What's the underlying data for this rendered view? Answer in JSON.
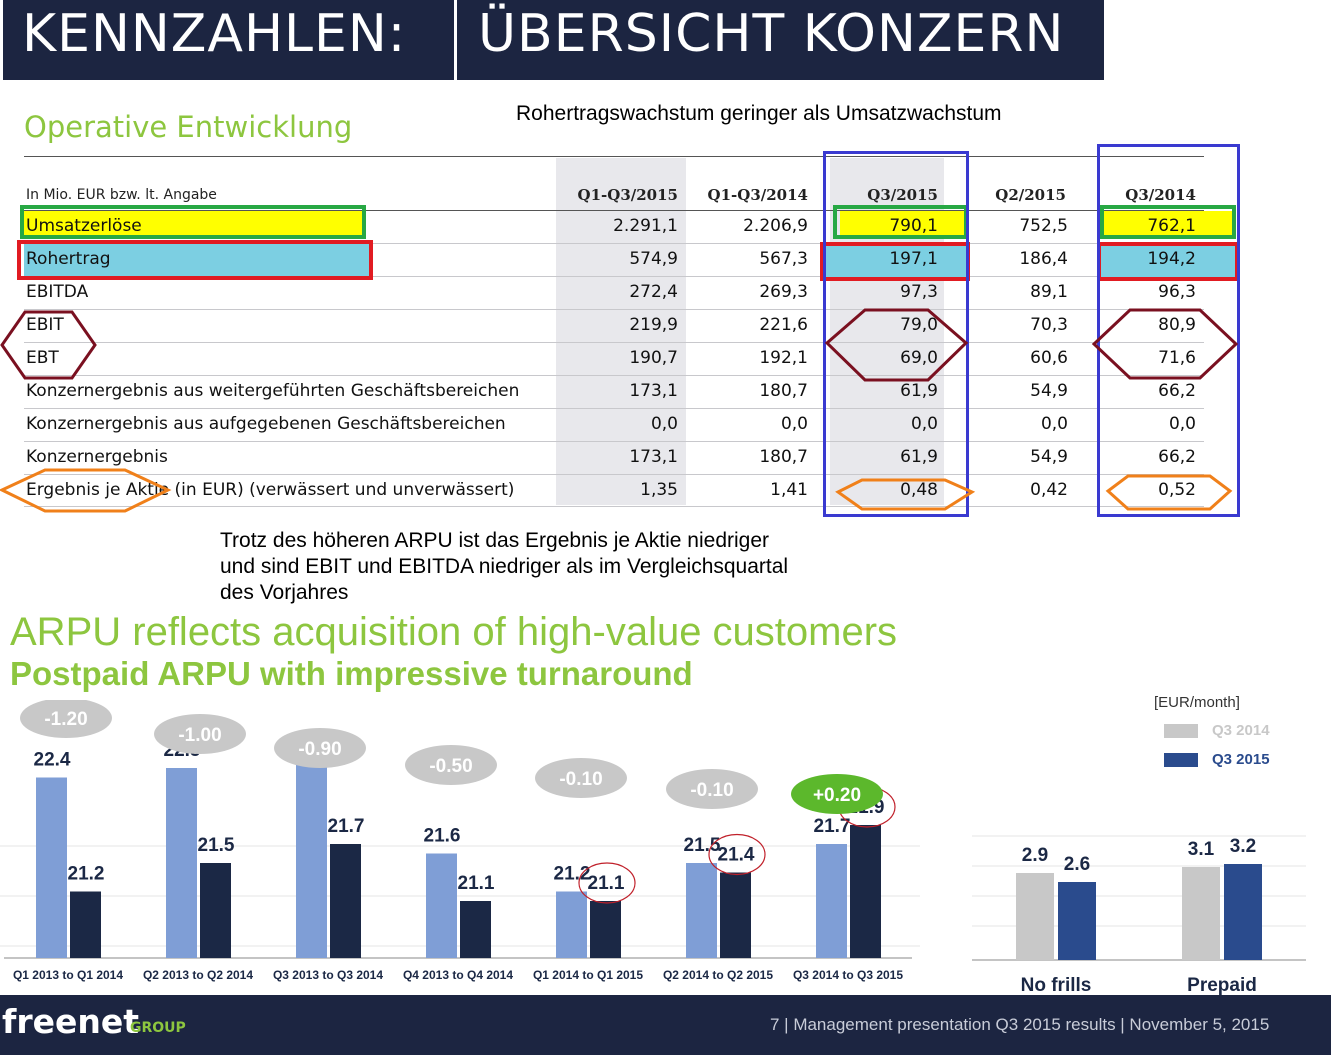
{
  "header": {
    "title_left": "KENNZAHLEN:",
    "title_right": "ÜBERSICHT KONZERN"
  },
  "section_title": "Operative Entwicklung",
  "note_top": "Rohertragswachstum geringer als Umsatzwachstum",
  "table": {
    "unit_label": "In Mio. EUR bzw. lt. Angabe",
    "columns": [
      "Q1-Q3/2015",
      "Q1-Q3/2014",
      "Q3/2015",
      "Q2/2015",
      "Q3/2014"
    ],
    "rows": [
      {
        "label": "Umsatzerlöse",
        "values": [
          "2.291,1",
          "2.206,9",
          "790,1",
          "752,5",
          "762,1"
        ]
      },
      {
        "label": "Rohertrag",
        "values": [
          "574,9",
          "567,3",
          "197,1",
          "186,4",
          "194,2"
        ]
      },
      {
        "label": "EBITDA",
        "values": [
          "272,4",
          "269,3",
          "97,3",
          "89,1",
          "96,3"
        ]
      },
      {
        "label": "EBIT",
        "values": [
          "219,9",
          "221,6",
          "79,0",
          "70,3",
          "80,9"
        ]
      },
      {
        "label": "EBT",
        "values": [
          "190,7",
          "192,1",
          "69,0",
          "60,6",
          "71,6"
        ]
      },
      {
        "label": "Konzernergebnis aus weitergeführten Geschäftsbereichen",
        "values": [
          "173,1",
          "180,7",
          "61,9",
          "54,9",
          "66,2"
        ]
      },
      {
        "label": "Konzernergebnis aus aufgegebenen Geschäftsbereichen",
        "values": [
          "0,0",
          "0,0",
          "0,0",
          "0,0",
          "0,0"
        ]
      },
      {
        "label": "Konzernergebnis",
        "values": [
          "173,1",
          "180,7",
          "61,9",
          "54,9",
          "66,2"
        ]
      },
      {
        "label": "Ergebnis je Aktie (in EUR) (verwässert und unverwässert)",
        "values": [
          "1,35",
          "1,41",
          "0,48",
          "0,42",
          "0,52"
        ]
      }
    ]
  },
  "note_bottom": [
    "Trotz des höheren ARPU ist das Ergebnis je Aktie niedriger",
    "und sind EBIT und EBITDA niedriger als im Vergleichsquartal",
    "des Vorjahres"
  ],
  "arpu": {
    "title": "ARPU reflects acquisition of high-value customers",
    "subtitle": "Postpaid ARPU with impressive turnaround"
  },
  "chart_data": [
    {
      "type": "bar",
      "categories": [
        "Q1 2013 to Q1 2014",
        "Q2 2013 to Q2 2014",
        "Q3  2013 to Q3 2014",
        "Q4 2013 to Q4 2014",
        "Q1 2014 to Q1 2015",
        "Q2 2014 to Q2 2015",
        "Q3 2014 to Q3 2015"
      ],
      "series": [
        {
          "values": [
            22.4,
            22.5,
            22.6,
            21.6,
            21.2,
            21.5,
            21.7
          ]
        },
        {
          "values": [
            21.2,
            21.5,
            21.7,
            21.1,
            21.1,
            21.4,
            21.9
          ]
        }
      ],
      "deltas": [
        "-1.20",
        "-1.00",
        "-0.90",
        "-0.50",
        "-0.10",
        "-0.10",
        "+0.20"
      ],
      "value_labels_prev": [
        "22.4",
        "22.5",
        "22.6",
        "21.6",
        "21.2",
        "21.5",
        "21.7"
      ],
      "value_labels_curr": [
        "21.2",
        "21.5",
        "21.7",
        "21.1",
        "21.1",
        "21.4",
        "21.9"
      ],
      "colors": {
        "prev": "#7f9ed6",
        "curr": "#1b2845",
        "delta_neg": "#c8c8c8",
        "delta_pos": "#5cb82c"
      },
      "ylim": [
        20.5,
        23
      ]
    },
    {
      "type": "bar",
      "unit": "[EUR/month]",
      "categories": [
        "No frills",
        "Prepaid"
      ],
      "series": [
        {
          "name": "Q3 2014",
          "values": [
            2.9,
            3.1
          ],
          "color": "#c8c8c8"
        },
        {
          "name": "Q3 2015",
          "values": [
            2.6,
            3.2
          ],
          "color": "#2a4b8d"
        }
      ],
      "value_labels": [
        [
          "2.9",
          "3.1"
        ],
        [
          "2.6",
          "3.2"
        ]
      ],
      "ylim": [
        0,
        4
      ]
    }
  ],
  "footer": {
    "logo": "freenet",
    "logo_group": "GROUP",
    "text": "7  |  Management presentation Q3 2015 results  |  November 5, 2015"
  }
}
